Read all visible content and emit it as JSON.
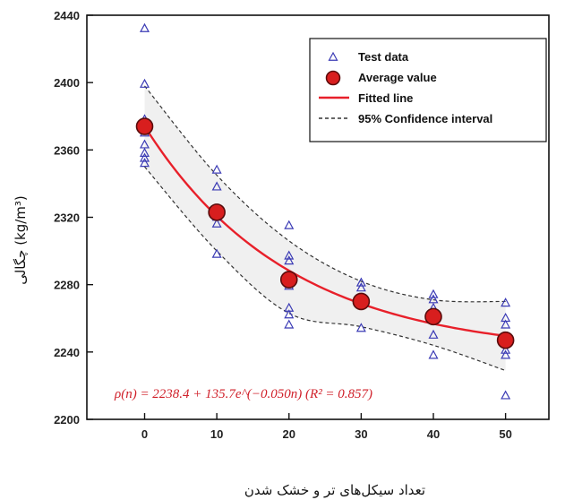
{
  "chart_data": {
    "type": "scatter",
    "xlabel": "تعداد سیکل‌های تر و خشک شدن",
    "ylabel": "چگالی (kg/m³)",
    "xlim": [
      -8,
      56
    ],
    "ylim": [
      2200,
      2440
    ],
    "x_ticks": [
      0,
      10,
      20,
      30,
      40,
      50
    ],
    "y_ticks": [
      2200,
      2240,
      2280,
      2320,
      2360,
      2400,
      2440
    ],
    "grid": false,
    "legend_position": "top-right",
    "legend": [
      {
        "label": "Test data",
        "marker": "triangle"
      },
      {
        "label": "Average value",
        "marker": "circle"
      },
      {
        "label": "Fitted line",
        "marker": "line"
      },
      {
        "label": "95% Confidence interval",
        "marker": "dashed"
      }
    ],
    "equation": "ρ(n) = 2238.4 + 135.7e^(−0.050n) (R² = 0.857)",
    "series": [
      {
        "name": "Test data",
        "points": [
          [
            0,
            2432
          ],
          [
            0,
            2399
          ],
          [
            0,
            2378
          ],
          [
            0,
            2370
          ],
          [
            0,
            2363
          ],
          [
            0,
            2358
          ],
          [
            0,
            2355
          ],
          [
            0,
            2352
          ],
          [
            10,
            2348
          ],
          [
            10,
            2338
          ],
          [
            10,
            2325
          ],
          [
            10,
            2320
          ],
          [
            10,
            2316
          ],
          [
            10,
            2298
          ],
          [
            20,
            2315
          ],
          [
            20,
            2297
          ],
          [
            20,
            2294
          ],
          [
            20,
            2284
          ],
          [
            20,
            2279
          ],
          [
            20,
            2266
          ],
          [
            20,
            2262
          ],
          [
            20,
            2256
          ],
          [
            30,
            2281
          ],
          [
            30,
            2278
          ],
          [
            30,
            2272
          ],
          [
            30,
            2268
          ],
          [
            30,
            2254
          ],
          [
            40,
            2274
          ],
          [
            40,
            2271
          ],
          [
            40,
            2266
          ],
          [
            40,
            2259
          ],
          [
            40,
            2250
          ],
          [
            40,
            2238
          ],
          [
            50,
            2269
          ],
          [
            50,
            2260
          ],
          [
            50,
            2256
          ],
          [
            50,
            2248
          ],
          [
            50,
            2241
          ],
          [
            50,
            2238
          ],
          [
            50,
            2214
          ]
        ]
      },
      {
        "name": "Average value",
        "points": [
          [
            0,
            2374
          ],
          [
            10,
            2323
          ],
          [
            20,
            2283
          ],
          [
            30,
            2270
          ],
          [
            40,
            2261
          ],
          [
            50,
            2247
          ]
        ]
      },
      {
        "name": "Fitted line",
        "a": 2238.4,
        "b": 135.7,
        "k": -0.05
      },
      {
        "name": "95% Confidence interval",
        "upper": [
          [
            0,
            2398
          ],
          [
            10,
            2345
          ],
          [
            20,
            2306
          ],
          [
            30,
            2282
          ],
          [
            40,
            2271
          ],
          [
            50,
            2270
          ]
        ],
        "lower": [
          [
            0,
            2350
          ],
          [
            10,
            2300
          ],
          [
            20,
            2263
          ],
          [
            30,
            2255
          ],
          [
            40,
            2244
          ],
          [
            50,
            2229
          ]
        ]
      }
    ]
  },
  "colors": {
    "test_data": "#3b3bb5",
    "average_fill": "#d81e1e",
    "average_stroke": "#5a0c0c",
    "fitted_line": "#e8202a",
    "confidence": "#333333",
    "equation": "#d0202a"
  }
}
